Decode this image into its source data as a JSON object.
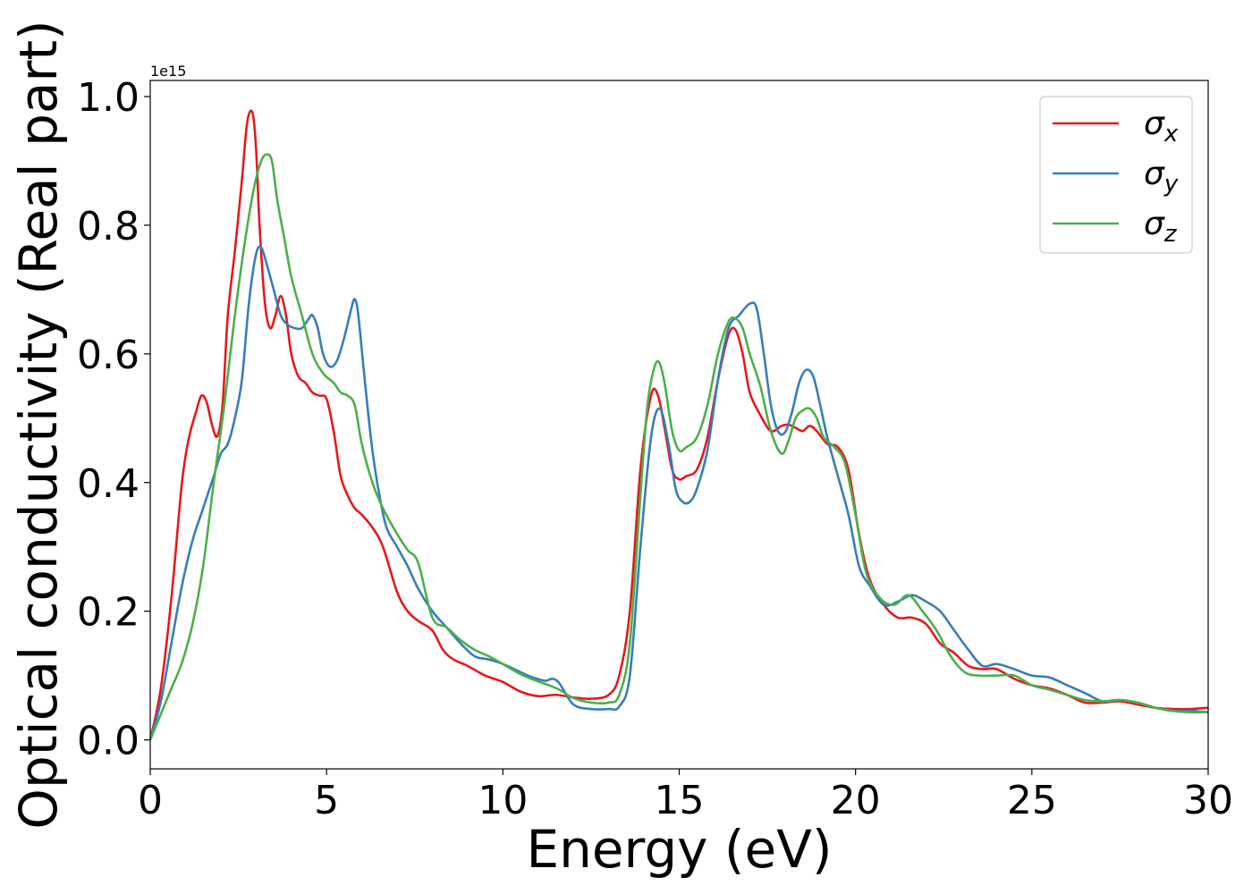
{
  "chart_data": {
    "type": "line",
    "title": "",
    "xlabel": "Energy (eV)",
    "ylabel": "Optical conductivity (Real part)",
    "offset_text": "1e15",
    "y_scale_factor": 1000000000000000.0,
    "xlim": [
      0,
      30
    ],
    "ylim": [
      -0.045,
      1.025
    ],
    "xticks": [
      0,
      5,
      10,
      15,
      20,
      25,
      30
    ],
    "xtick_labels": [
      "0",
      "5",
      "10",
      "15",
      "20",
      "25",
      "30"
    ],
    "yticks": [
      0.0,
      0.2,
      0.4,
      0.6,
      0.8,
      1.0
    ],
    "ytick_labels": [
      "0.0",
      "0.2",
      "0.4",
      "0.6",
      "0.8",
      "1.0"
    ],
    "grid": false,
    "legend_position": "top-right",
    "series": [
      {
        "name": "σ",
        "subscript": "x",
        "color": "#e41a1c",
        "x": [
          0,
          0.3,
          0.6,
          0.9,
          1.1,
          1.3,
          1.45,
          1.6,
          1.75,
          1.9,
          2.05,
          2.2,
          2.4,
          2.6,
          2.75,
          2.9,
          3.0,
          3.1,
          3.25,
          3.4,
          3.55,
          3.7,
          3.85,
          4.0,
          4.2,
          4.4,
          4.6,
          4.8,
          5.0,
          5.2,
          5.4,
          5.6,
          5.8,
          6.0,
          6.3,
          6.6,
          7.0,
          7.3,
          7.6,
          8.0,
          8.3,
          8.6,
          9.0,
          9.5,
          10.0,
          10.5,
          11.0,
          11.5,
          12.0,
          12.5,
          13.0,
          13.3,
          13.6,
          13.9,
          14.2,
          14.4,
          14.6,
          14.8,
          15.0,
          15.2,
          15.5,
          15.8,
          16.1,
          16.4,
          16.6,
          16.8,
          17.0,
          17.3,
          17.6,
          17.9,
          18.1,
          18.3,
          18.5,
          18.7,
          18.9,
          19.2,
          19.5,
          19.8,
          20.1,
          20.4,
          20.8,
          21.2,
          21.6,
          22.0,
          22.4,
          22.8,
          23.2,
          23.6,
          24.0,
          24.5,
          25.0,
          25.5,
          26.0,
          26.5,
          27.0,
          27.5,
          28.0,
          28.5,
          29.0,
          29.5,
          30.0
        ],
        "y": [
          0.0,
          0.08,
          0.22,
          0.4,
          0.47,
          0.51,
          0.535,
          0.525,
          0.49,
          0.472,
          0.52,
          0.66,
          0.76,
          0.87,
          0.96,
          0.975,
          0.92,
          0.8,
          0.68,
          0.64,
          0.66,
          0.69,
          0.66,
          0.6,
          0.565,
          0.555,
          0.54,
          0.535,
          0.53,
          0.48,
          0.41,
          0.38,
          0.36,
          0.35,
          0.33,
          0.3,
          0.23,
          0.2,
          0.185,
          0.17,
          0.14,
          0.125,
          0.115,
          0.1,
          0.09,
          0.075,
          0.068,
          0.07,
          0.066,
          0.064,
          0.07,
          0.1,
          0.2,
          0.42,
          0.535,
          0.535,
          0.48,
          0.42,
          0.405,
          0.41,
          0.42,
          0.47,
          0.56,
          0.63,
          0.637,
          0.6,
          0.54,
          0.505,
          0.48,
          0.488,
          0.49,
          0.485,
          0.48,
          0.488,
          0.48,
          0.46,
          0.455,
          0.42,
          0.32,
          0.25,
          0.21,
          0.19,
          0.19,
          0.18,
          0.15,
          0.135,
          0.115,
          0.11,
          0.11,
          0.095,
          0.085,
          0.08,
          0.07,
          0.058,
          0.058,
          0.06,
          0.055,
          0.05,
          0.048,
          0.048,
          0.05
        ]
      },
      {
        "name": "σ",
        "subscript": "y",
        "color": "#377eb8",
        "x": [
          0,
          0.3,
          0.6,
          0.9,
          1.2,
          1.5,
          1.8,
          2.0,
          2.2,
          2.4,
          2.6,
          2.8,
          3.0,
          3.15,
          3.3,
          3.5,
          3.7,
          3.9,
          4.1,
          4.3,
          4.5,
          4.6,
          4.75,
          4.9,
          5.1,
          5.3,
          5.5,
          5.7,
          5.8,
          5.9,
          6.1,
          6.3,
          6.5,
          6.7,
          7.0,
          7.3,
          7.6,
          8.0,
          8.4,
          8.8,
          9.2,
          9.6,
          10.0,
          10.4,
          10.8,
          11.2,
          11.4,
          11.6,
          12.0,
          12.5,
          13.0,
          13.3,
          13.6,
          13.9,
          14.2,
          14.45,
          14.7,
          14.9,
          15.1,
          15.3,
          15.5,
          15.8,
          16.1,
          16.4,
          16.7,
          17.0,
          17.2,
          17.4,
          17.6,
          17.8,
          18.0,
          18.2,
          18.4,
          18.6,
          18.8,
          19.0,
          19.2,
          19.5,
          19.8,
          20.1,
          20.4,
          20.8,
          21.2,
          21.6,
          22.0,
          22.4,
          22.8,
          23.2,
          23.6,
          24.0,
          24.5,
          25.0,
          25.5,
          26.0,
          26.5,
          27.0,
          27.5,
          28.0,
          28.5,
          29.0,
          29.5,
          30.0
        ],
        "y": [
          0.0,
          0.06,
          0.15,
          0.24,
          0.31,
          0.36,
          0.41,
          0.445,
          0.46,
          0.5,
          0.56,
          0.68,
          0.755,
          0.765,
          0.74,
          0.7,
          0.66,
          0.645,
          0.64,
          0.64,
          0.655,
          0.66,
          0.64,
          0.6,
          0.58,
          0.59,
          0.625,
          0.67,
          0.685,
          0.66,
          0.55,
          0.45,
          0.38,
          0.33,
          0.3,
          0.27,
          0.235,
          0.2,
          0.175,
          0.15,
          0.13,
          0.125,
          0.118,
          0.108,
          0.098,
          0.092,
          0.095,
          0.088,
          0.055,
          0.048,
          0.048,
          0.052,
          0.1,
          0.3,
          0.47,
          0.515,
          0.46,
          0.39,
          0.37,
          0.37,
          0.39,
          0.45,
          0.56,
          0.64,
          0.66,
          0.678,
          0.67,
          0.6,
          0.52,
          0.48,
          0.478,
          0.51,
          0.555,
          0.575,
          0.565,
          0.52,
          0.47,
          0.41,
          0.35,
          0.27,
          0.24,
          0.21,
          0.215,
          0.225,
          0.215,
          0.2,
          0.17,
          0.14,
          0.115,
          0.118,
          0.11,
          0.1,
          0.097,
          0.085,
          0.073,
          0.06,
          0.062,
          0.058,
          0.05,
          0.045,
          0.045,
          0.043
        ]
      },
      {
        "name": "σ",
        "subscript": "z",
        "color": "#4daf4a",
        "x": [
          0,
          0.3,
          0.6,
          0.9,
          1.2,
          1.5,
          1.8,
          2.1,
          2.4,
          2.7,
          2.95,
          3.15,
          3.3,
          3.45,
          3.6,
          3.8,
          4.0,
          4.3,
          4.6,
          4.9,
          5.2,
          5.4,
          5.6,
          5.8,
          6.0,
          6.3,
          6.6,
          7.0,
          7.3,
          7.6,
          8.0,
          8.4,
          8.8,
          9.2,
          9.6,
          10.0,
          10.4,
          10.8,
          11.2,
          11.6,
          12.0,
          12.5,
          13.0,
          13.3,
          13.6,
          13.9,
          14.1,
          14.3,
          14.45,
          14.6,
          14.8,
          15.0,
          15.2,
          15.5,
          15.8,
          16.1,
          16.4,
          16.6,
          16.8,
          17.0,
          17.3,
          17.6,
          17.9,
          18.1,
          18.3,
          18.5,
          18.7,
          18.9,
          19.1,
          19.4,
          19.7,
          20.0,
          20.3,
          20.7,
          21.1,
          21.5,
          21.9,
          22.3,
          22.7,
          23.1,
          23.5,
          24.0,
          24.5,
          25.0,
          25.5,
          26.0,
          26.5,
          27.0,
          27.5,
          28.0,
          28.5,
          29.0,
          29.5,
          30.0
        ],
        "y": [
          0.0,
          0.04,
          0.08,
          0.12,
          0.18,
          0.27,
          0.4,
          0.52,
          0.66,
          0.78,
          0.86,
          0.9,
          0.91,
          0.9,
          0.84,
          0.78,
          0.72,
          0.66,
          0.6,
          0.57,
          0.555,
          0.54,
          0.535,
          0.52,
          0.46,
          0.4,
          0.36,
          0.32,
          0.295,
          0.275,
          0.19,
          0.175,
          0.155,
          0.14,
          0.13,
          0.118,
          0.105,
          0.095,
          0.087,
          0.078,
          0.065,
          0.058,
          0.058,
          0.07,
          0.15,
          0.38,
          0.52,
          0.58,
          0.585,
          0.55,
          0.48,
          0.45,
          0.455,
          0.47,
          0.52,
          0.6,
          0.65,
          0.655,
          0.64,
          0.6,
          0.55,
          0.48,
          0.445,
          0.465,
          0.5,
          0.512,
          0.515,
          0.5,
          0.47,
          0.455,
          0.43,
          0.35,
          0.26,
          0.22,
          0.21,
          0.225,
          0.2,
          0.17,
          0.13,
          0.105,
          0.1,
          0.1,
          0.1,
          0.085,
          0.078,
          0.07,
          0.062,
          0.06,
          0.062,
          0.058,
          0.05,
          0.045,
          0.043,
          0.043
        ]
      }
    ]
  }
}
